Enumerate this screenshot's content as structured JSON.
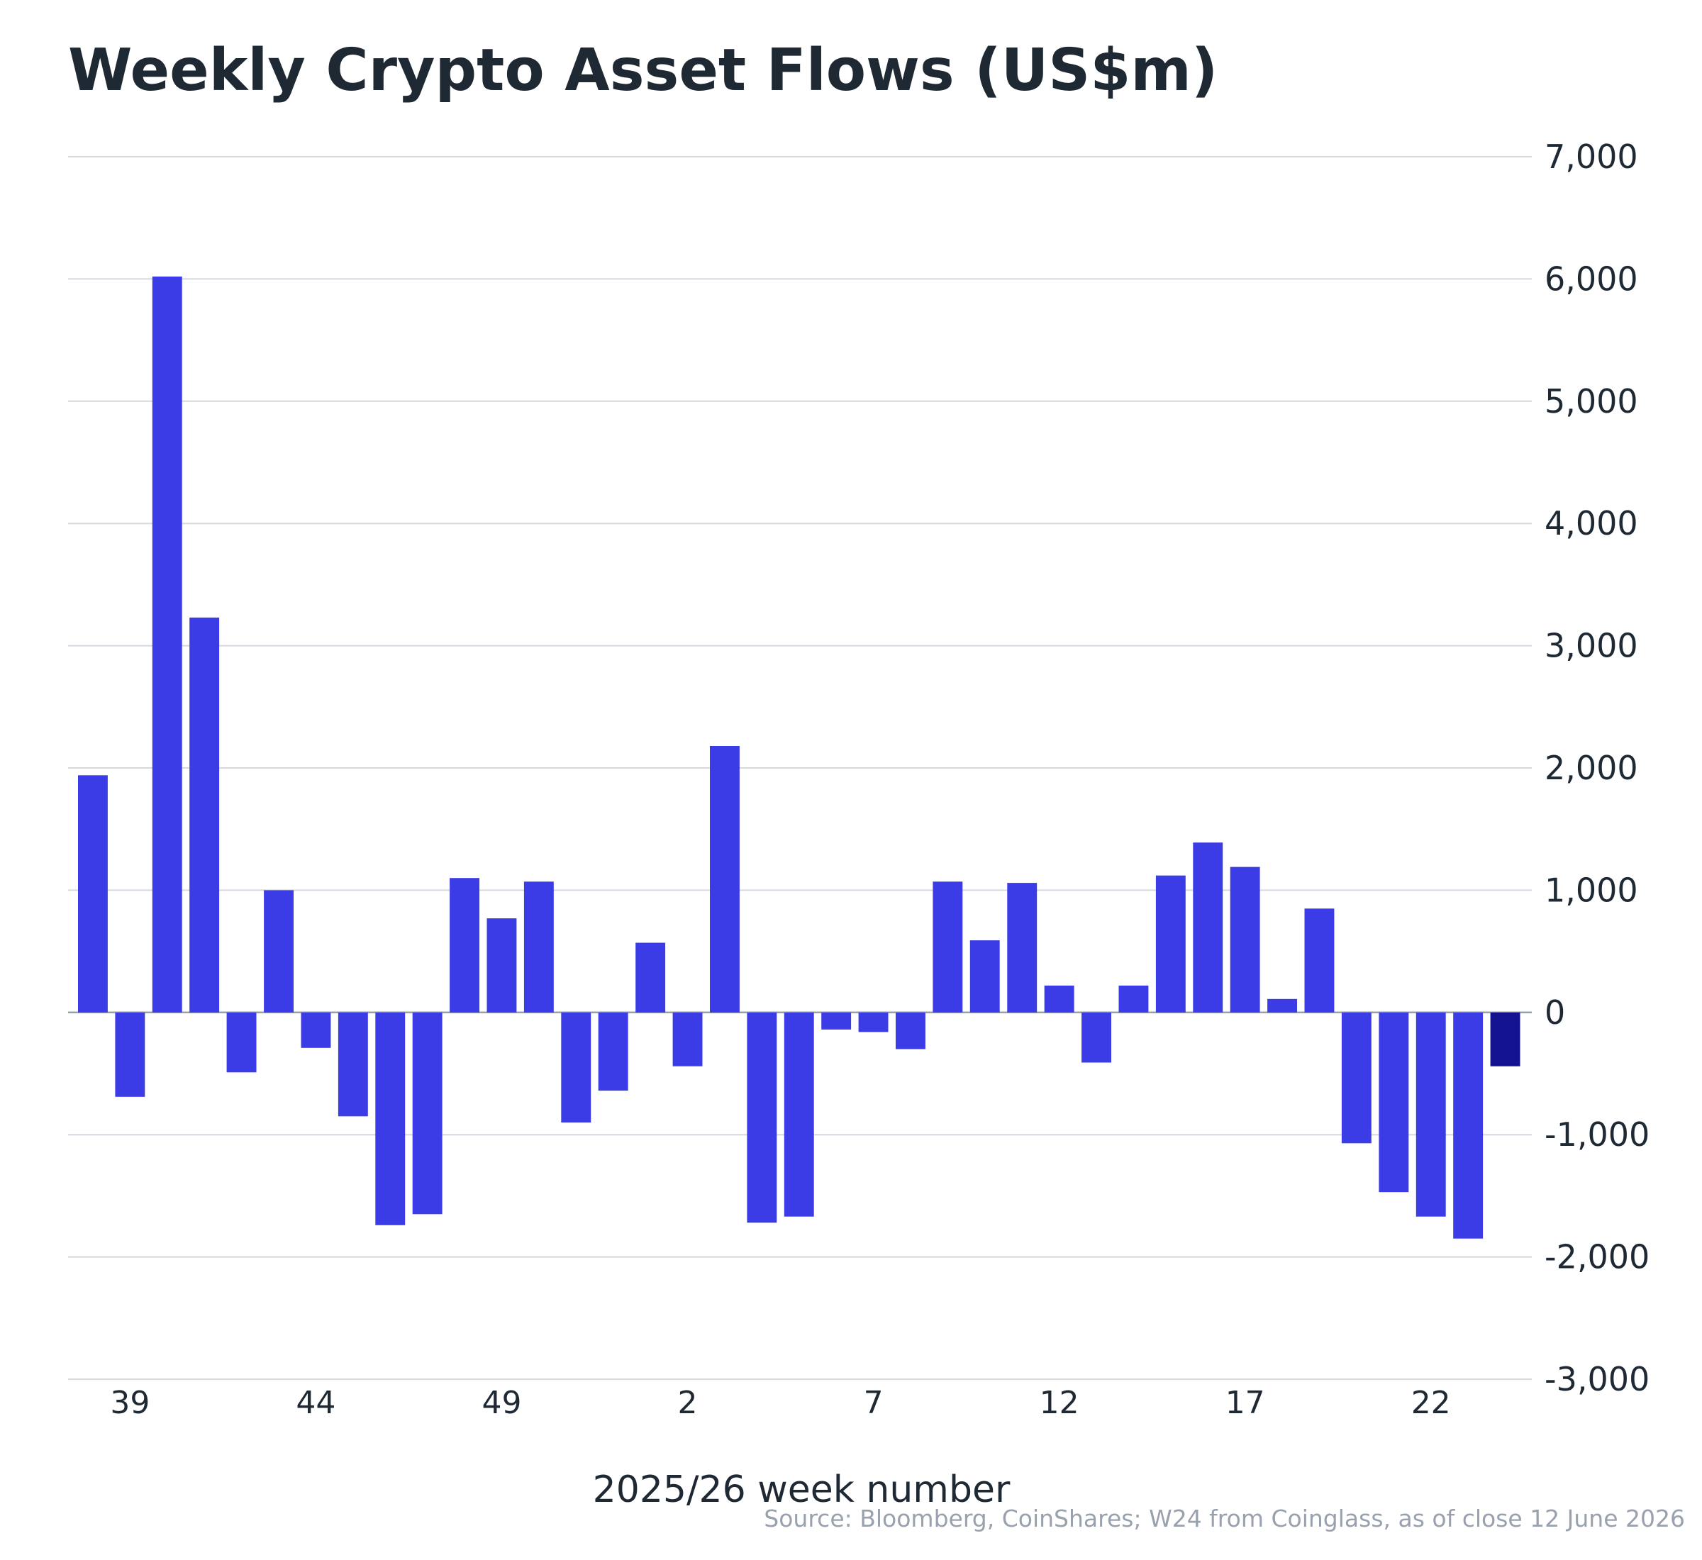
{
  "chart_data": {
    "type": "bar",
    "title": "Weekly Crypto Asset Flows (US$m)",
    "xlabel": "2025/26 week number",
    "ylabel": "",
    "source": "Source: Bloomberg, CoinShares;  W24 from Coinglass, as of close 12 June 2026",
    "ylim": [
      -3000,
      7000
    ],
    "yticks": [
      "7,000",
      "6,000",
      "5,000",
      "4,000",
      "3,000",
      "2,000",
      "1,000",
      "0",
      "-1,000",
      "-2,000",
      "-3,000"
    ],
    "ytick_values": [
      7000,
      6000,
      5000,
      4000,
      3000,
      2000,
      1000,
      0,
      -1000,
      -2000,
      -3000
    ],
    "xticks": [
      "39",
      "44",
      "49",
      "2",
      "7",
      "12",
      "17",
      "22"
    ],
    "categories": [
      "38",
      "39",
      "40",
      "41",
      "42",
      "43",
      "44",
      "45",
      "46",
      "47",
      "48",
      "49",
      "50",
      "51",
      "52",
      "1",
      "2",
      "3",
      "4",
      "5",
      "6",
      "7",
      "8",
      "9",
      "10",
      "11",
      "12",
      "13",
      "14",
      "15",
      "16",
      "17",
      "18",
      "19",
      "20",
      "21",
      "22",
      "23",
      "24"
    ],
    "values": [
      1940,
      -690,
      6020,
      3230,
      -490,
      1000,
      -290,
      -850,
      -1740,
      -1650,
      1100,
      770,
      1070,
      -900,
      -640,
      570,
      -440,
      2180,
      -1720,
      -1670,
      -140,
      -160,
      -300,
      1070,
      590,
      1060,
      220,
      -410,
      220,
      1120,
      1390,
      1190,
      110,
      850,
      -1070,
      -1470,
      -1670,
      -1850,
      -440
    ],
    "grid": true,
    "y_axis_side": "right",
    "colors": {
      "bar": "#3c3ce6",
      "latest_bar": "#13138f",
      "grid": "#d5d8df",
      "text": "#1f2933",
      "source": "#98a1ad"
    }
  }
}
